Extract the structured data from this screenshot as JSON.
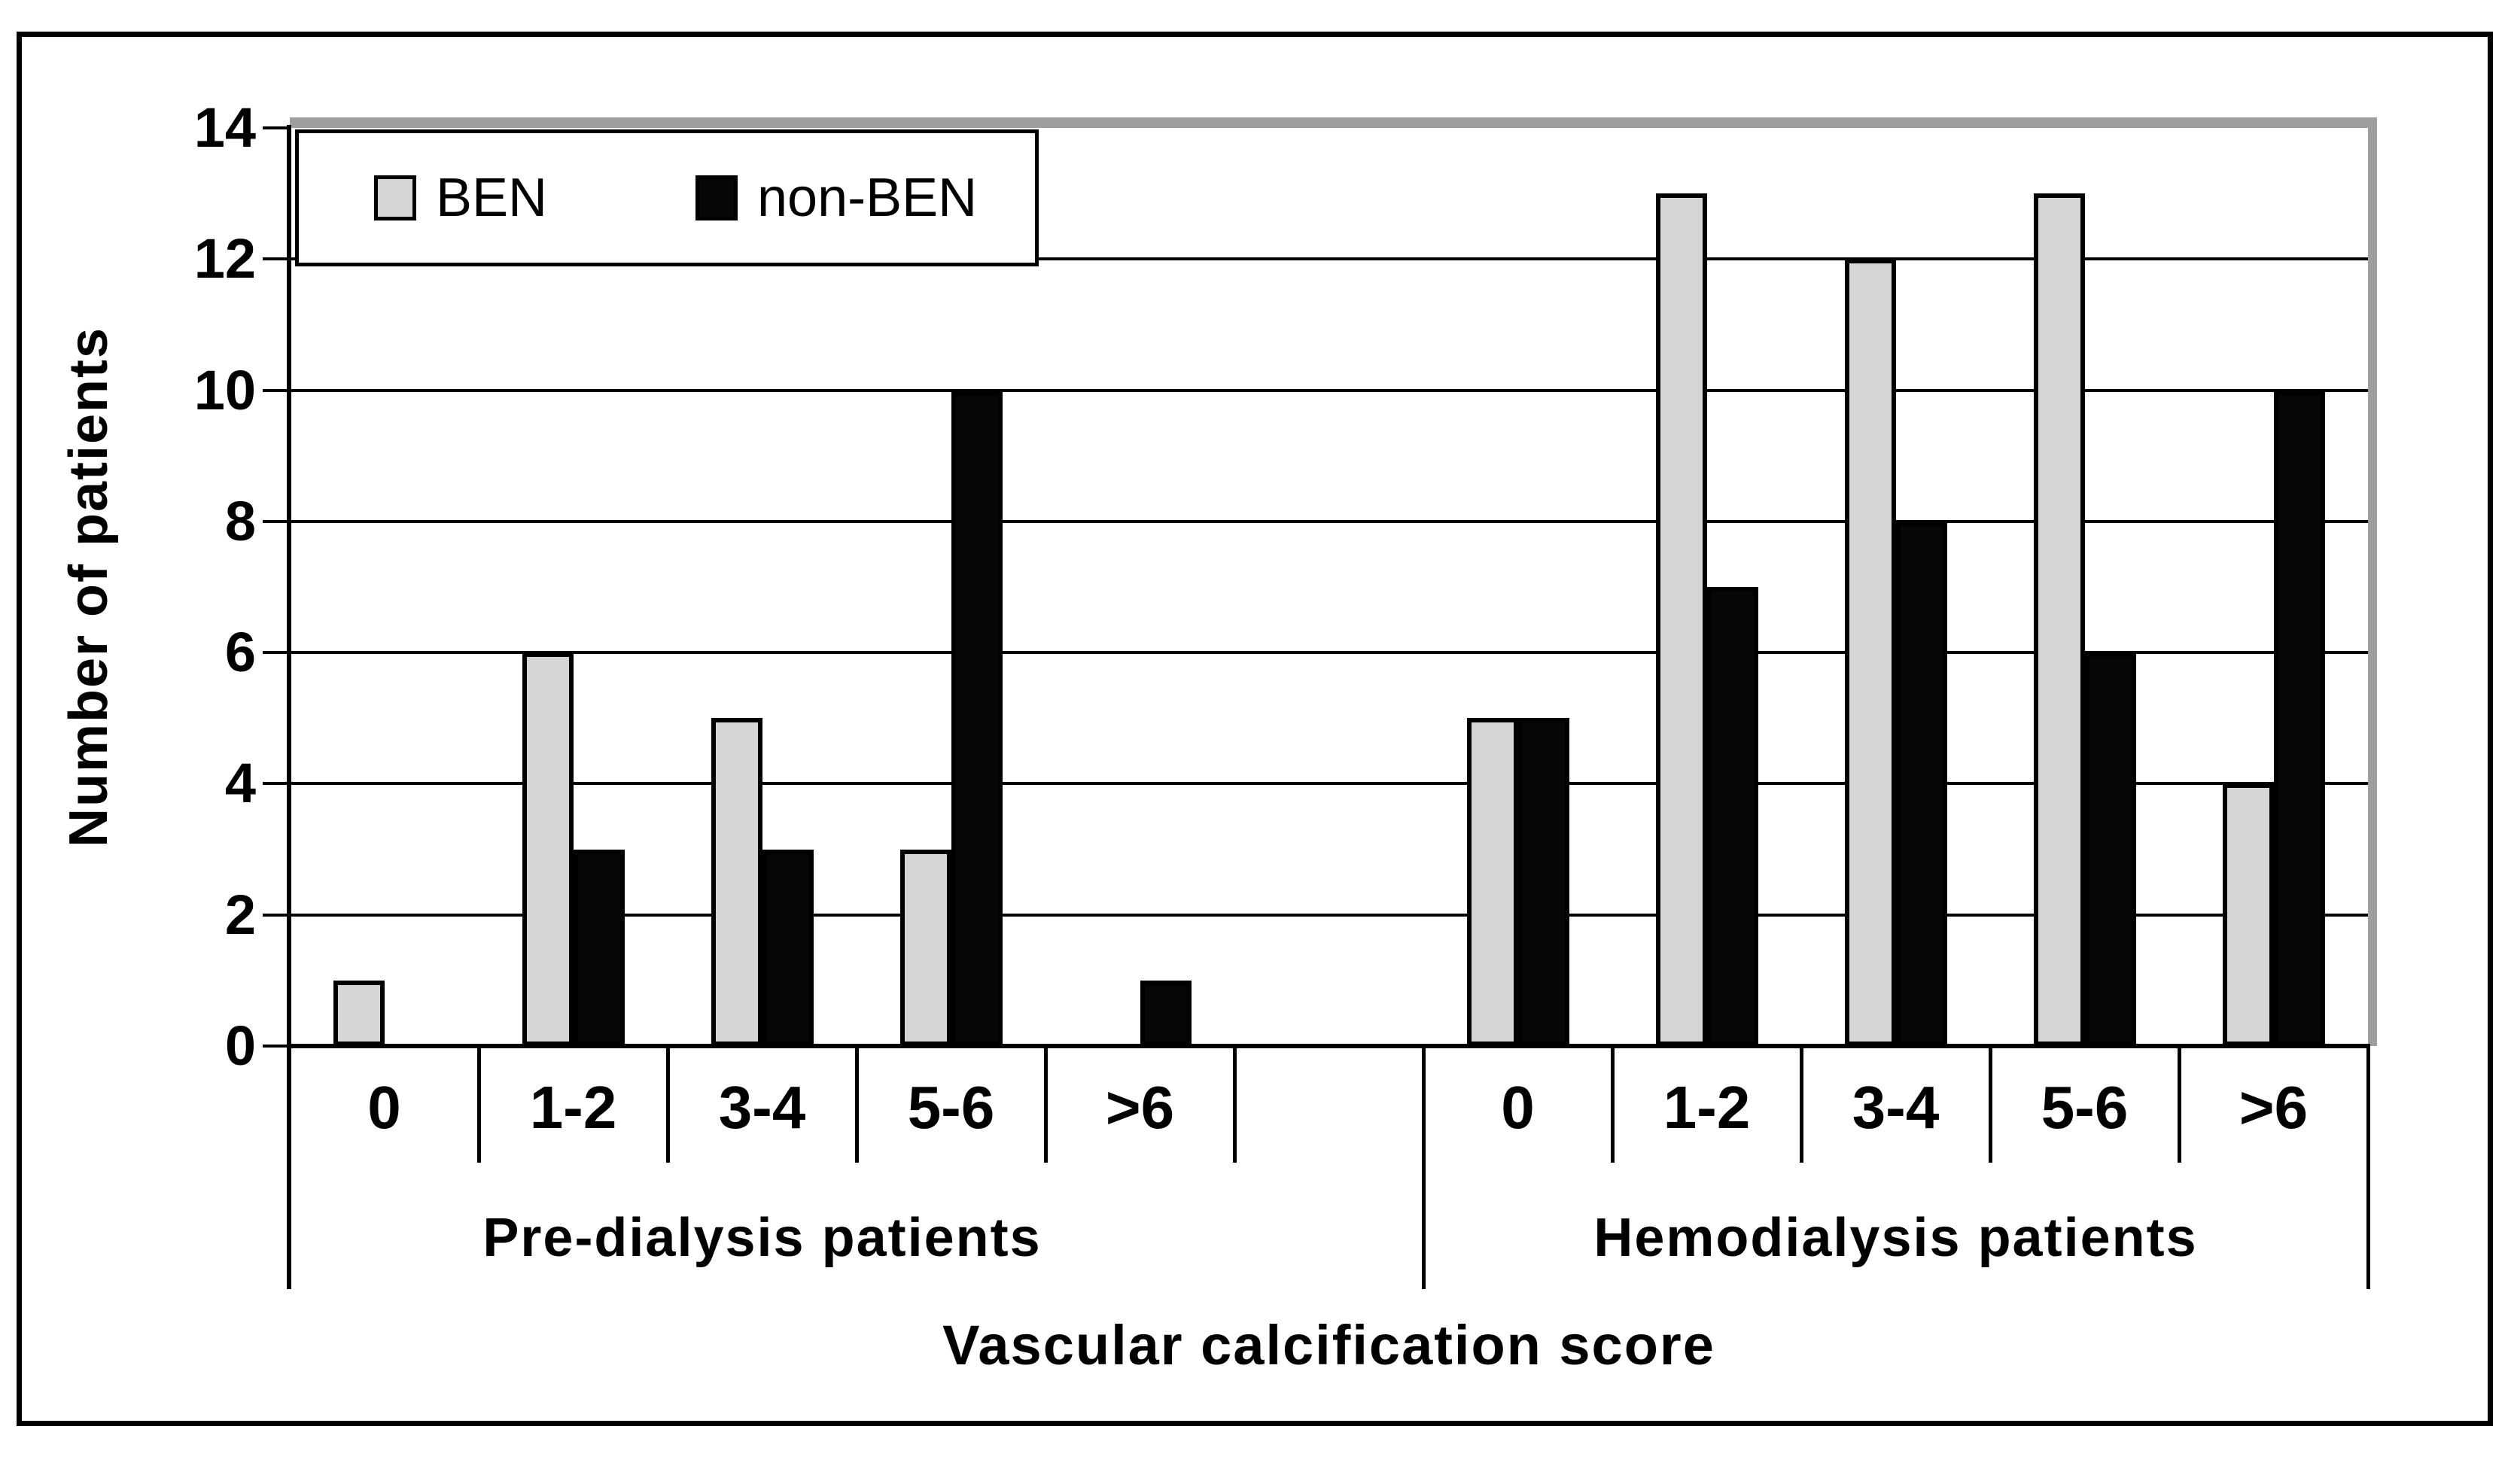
{
  "figure": {
    "background": "#ffffff",
    "border_color": "#000000"
  },
  "legend": {
    "position": "top-left",
    "entries": [
      {
        "label": "BEN",
        "color": "#d5d5d5"
      },
      {
        "label": "non-BEN",
        "color": "#060606"
      }
    ]
  },
  "style": {
    "plot_shadow_color": "#9e9e9e",
    "bar_border_color": "#000000",
    "grid_color": "#000000"
  },
  "chart_data": {
    "type": "bar",
    "title": "",
    "xlabel": "Vascular calcification score",
    "ylabel": "Number of patients",
    "ylim": [
      0,
      14
    ],
    "yticks": [
      0,
      2,
      4,
      6,
      8,
      10,
      12,
      14
    ],
    "grid": true,
    "legend_position": "top-left",
    "gap_slot_between_groups": 1,
    "groups": [
      {
        "label": "Pre-dialysis patients",
        "categories": [
          "0",
          "1-2",
          "3-4",
          "5-6",
          ">6"
        ],
        "series": [
          {
            "name": "BEN",
            "values": [
              1,
              6,
              5,
              3,
              0
            ]
          },
          {
            "name": "non-BEN",
            "values": [
              0,
              3,
              3,
              10,
              1
            ]
          }
        ]
      },
      {
        "label": "Hemodialysis patients",
        "categories": [
          "0",
          "1-2",
          "3-4",
          "5-6",
          ">6"
        ],
        "series": [
          {
            "name": "BEN",
            "values": [
              5,
              13,
              12,
              13,
              4
            ]
          },
          {
            "name": "non-BEN",
            "values": [
              5,
              7,
              8,
              6,
              10
            ]
          }
        ]
      }
    ]
  }
}
